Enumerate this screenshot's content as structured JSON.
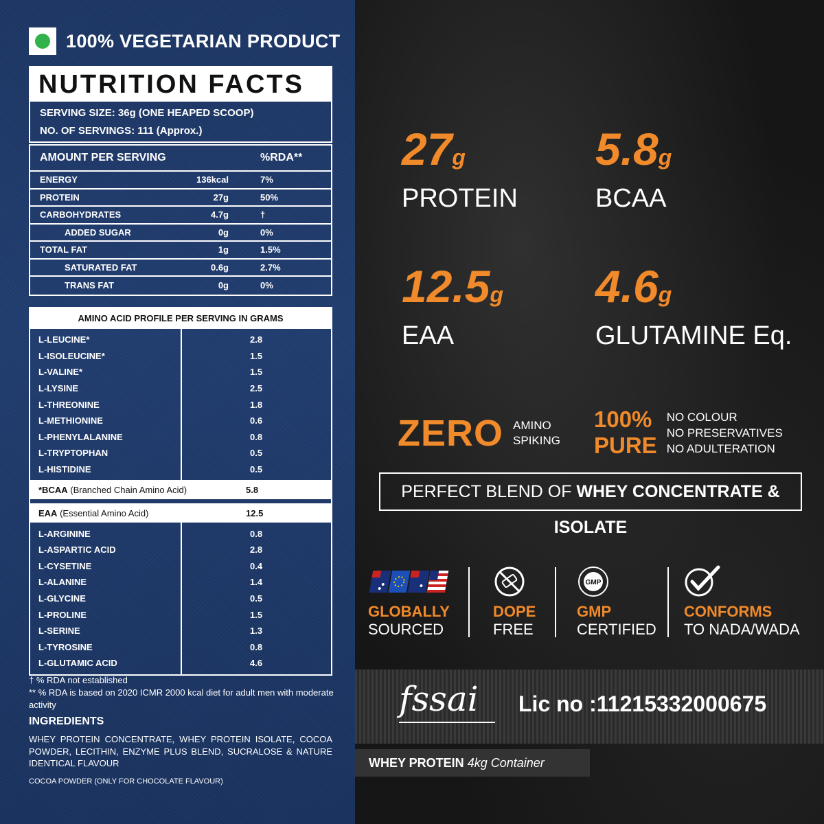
{
  "veg_label": "100% VEGETARIAN PRODUCT",
  "nutrition": {
    "title": "NUTRITION FACTS",
    "serving_size": "SERVING SIZE: 36g (ONE HEAPED SCOOP)",
    "servings": "NO. OF SERVINGS: 111 (Approx.)",
    "header_amount": "AMOUNT PER SERVING",
    "header_rda": "%RDA**",
    "rows": [
      {
        "name": "ENERGY",
        "value": "136kcal",
        "rda": "7%",
        "indent": false
      },
      {
        "name": "PROTEIN",
        "value": "27g",
        "rda": "50%",
        "indent": false
      },
      {
        "name": "CARBOHYDRATES",
        "value": "4.7g",
        "rda": "†",
        "indent": false
      },
      {
        "name": "ADDED SUGAR",
        "value": "0g",
        "rda": "0%",
        "indent": true
      },
      {
        "name": "TOTAL FAT",
        "value": "1g",
        "rda": "1.5%",
        "indent": false
      },
      {
        "name": "SATURATED FAT",
        "value": "0.6g",
        "rda": "2.7%",
        "indent": true
      },
      {
        "name": "TRANS FAT",
        "value": "0g",
        "rda": "0%",
        "indent": true
      }
    ]
  },
  "amino": {
    "title": "AMINO ACID PROFILE PER SERVING IN GRAMS",
    "group1": [
      {
        "name": "L-LEUCINE*",
        "value": "2.8"
      },
      {
        "name": "L-ISOLEUCINE*",
        "value": "1.5"
      },
      {
        "name": "L-VALINE*",
        "value": "1.5"
      },
      {
        "name": "L-LYSINE",
        "value": "2.5"
      },
      {
        "name": "L-THREONINE",
        "value": "1.8"
      },
      {
        "name": "L-METHIONINE",
        "value": "0.6"
      },
      {
        "name": "L-PHENYLALANINE",
        "value": "0.8"
      },
      {
        "name": "L-TRYPTOPHAN",
        "value": "0.5"
      },
      {
        "name": "L-HISTIDINE",
        "value": "0.5"
      }
    ],
    "bcaa_label": "*BCAA",
    "bcaa_desc": "(Branched Chain Amino Acid)",
    "bcaa_value": "5.8",
    "eaa_label": "EAA",
    "eaa_desc": "(Essential Amino Acid)",
    "eaa_value": "12.5",
    "group2": [
      {
        "name": "L-ARGININE",
        "value": "0.8"
      },
      {
        "name": "L-ASPARTIC ACID",
        "value": "2.8"
      },
      {
        "name": "L-CYSETINE",
        "value": "0.4"
      },
      {
        "name": "L-ALANINE",
        "value": "1.4"
      },
      {
        "name": "L-GLYCINE",
        "value": "0.5"
      },
      {
        "name": "L-PROLINE",
        "value": "1.5"
      },
      {
        "name": "L-SERINE",
        "value": "1.3"
      },
      {
        "name": "L-TYROSINE",
        "value": "0.8"
      },
      {
        "name": "L-GLUTAMIC ACID",
        "value": "4.6"
      }
    ]
  },
  "notes": {
    "line1": "† % RDA not established",
    "line2": "** % RDA is based on 2020 ICMR 2000 kcal diet for adult men with moderate activity"
  },
  "ingredients": {
    "title": "INGREDIENTS",
    "text": "WHEY PROTEIN CONCENTRATE, WHEY PROTEIN ISOLATE, COCOA POWDER, LECITHIN, ENZYME PLUS BLEND, SUCRALOSE & NATURE IDENTICAL FLAVOUR",
    "cocoa_note": "COCOA POWDER (ONLY FOR CHOCOLATE FLAVOUR)"
  },
  "stats": [
    {
      "num": "27",
      "unit": "g",
      "label": "PROTEIN"
    },
    {
      "num": "5.8",
      "unit": "g",
      "label": "BCAA"
    },
    {
      "num": "12.5",
      "unit": "g",
      "label": "EAA"
    },
    {
      "num": "4.6",
      "unit": "g",
      "label": "GLUTAMINE Eq."
    }
  ],
  "zero": {
    "big": "ZERO",
    "line1": "AMINO",
    "line2": "SPIKING"
  },
  "pure": {
    "line1": "100%",
    "line2": "PURE",
    "items": [
      "NO COLOUR",
      "NO PRESERVATIVES",
      "NO ADULTERATION"
    ]
  },
  "blend": {
    "prefix": "PERFECT BLEND OF ",
    "bold": "WHEY CONCENTRATE & ISOLATE"
  },
  "badges": [
    {
      "icon": "flags-icon",
      "t1": "GLOBALLY",
      "t2": "SOURCED"
    },
    {
      "icon": "no-drugs-icon",
      "t1": "DOPE",
      "t2": "FREE"
    },
    {
      "icon": "gmp-seal-icon",
      "t1": "GMP",
      "t2": "CERTIFIED"
    },
    {
      "icon": "checkmark-icon",
      "t1": "CONFORMS",
      "t2": "TO NADA/WADA"
    }
  ],
  "fssai": {
    "logo": "fssai",
    "license": "Lic no :11215332000675"
  },
  "container": {
    "bold": "WHEY PROTEIN",
    "size": "4kg",
    "rest": "Container"
  },
  "colors": {
    "accent": "#f08a2a",
    "veg_green": "#2fb34a",
    "denim": "#1f3a6c",
    "dark": "#161616"
  }
}
